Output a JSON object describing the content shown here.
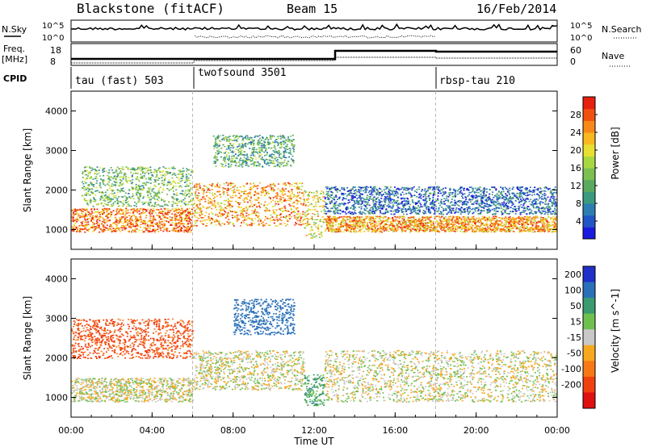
{
  "header": {
    "station": "Blackstone (fitACF)",
    "beam": "Beam 15",
    "date": "16/Feb/2014"
  },
  "sky_panel": {
    "left_label": "N.Sky",
    "right_label": "N.Search",
    "left_ticks": [
      "10^5",
      "10^0"
    ],
    "right_ticks": [
      "10^5",
      "10^0"
    ]
  },
  "freq_panel": {
    "left_label_1": "Freq.",
    "left_label_2": "[MHz]",
    "right_label": "Nave",
    "left_ticks": [
      "18",
      "8"
    ],
    "right_ticks": [
      "60",
      "0"
    ]
  },
  "cpid": {
    "label": "CPID",
    "segments": [
      {
        "name": "tau (fast) 503",
        "start_hour": 0
      },
      {
        "name": "twofsound 3501",
        "start_hour": 6
      },
      {
        "name": "rbsp-tau 210",
        "start_hour": 18
      }
    ]
  },
  "chart_data": [
    {
      "type": "heatmap",
      "title": "",
      "quantity": "Power",
      "ylabel": "Slant Range [km]",
      "xlabel": "Time UT",
      "yticks": [
        "1000",
        "2000",
        "3000",
        "4000"
      ],
      "ylim": [
        500,
        4500
      ],
      "xlim_hours": [
        0,
        24
      ],
      "colorbar": {
        "label": "Power [dB]",
        "ticks": [
          "4",
          "8",
          "12",
          "16",
          "20",
          "24",
          "28"
        ],
        "colors": [
          "#1a1adf",
          "#2255c8",
          "#2a7fb0",
          "#3a9a80",
          "#5aaa60",
          "#7cc050",
          "#a8d840",
          "#e8e030",
          "#f8b820",
          "#f88818",
          "#f05010",
          "#e82010"
        ]
      },
      "bands": [
        {
          "t0": 0.0,
          "t1": 6.0,
          "range_km": [
            950,
            1550
          ],
          "power_db": 26
        },
        {
          "t0": 0.5,
          "t1": 6.0,
          "range_km": [
            1600,
            2600
          ],
          "power_db": 14
        },
        {
          "t0": 6.0,
          "t1": 11.5,
          "range_km": [
            1100,
            2200
          ],
          "power_db": 24
        },
        {
          "t0": 7.0,
          "t1": 11.0,
          "range_km": [
            2600,
            3400
          ],
          "power_db": 12
        },
        {
          "t0": 11.5,
          "t1": 12.5,
          "range_km": [
            800,
            2000
          ],
          "power_db": 20
        },
        {
          "t0": 12.5,
          "t1": 24.0,
          "range_km": [
            950,
            1350
          ],
          "power_db": 24
        },
        {
          "t0": 12.5,
          "t1": 24.0,
          "range_km": [
            1400,
            2100
          ],
          "power_db": 6
        }
      ]
    },
    {
      "type": "heatmap",
      "title": "",
      "quantity": "Velocity",
      "ylabel": "Slant Range [km]",
      "xlabel": "Time UT",
      "yticks": [
        "1000",
        "2000",
        "3000",
        "4000"
      ],
      "ylim": [
        500,
        4500
      ],
      "xlim_hours": [
        0,
        24
      ],
      "xticks": [
        "00:00",
        "04:00",
        "08:00",
        "12:00",
        "16:00",
        "20:00",
        "00:00"
      ],
      "colorbar": {
        "label": "Velocity [m s^-1]",
        "ticks": [
          "200",
          "100",
          "50",
          "15",
          "-15",
          "-50",
          "-100",
          "-200"
        ],
        "colors": [
          "#2030c8",
          "#2a70b8",
          "#3a9a70",
          "#70c050",
          "#c8c8c8",
          "#f8a820",
          "#f87818",
          "#f04010",
          "#e01010"
        ]
      },
      "bands": [
        {
          "t0": 0.0,
          "t1": 6.0,
          "range_km": [
            2000,
            3000
          ],
          "velocity": -120
        },
        {
          "t0": 0.0,
          "t1": 6.0,
          "range_km": [
            900,
            1500
          ],
          "velocity": 0
        },
        {
          "t0": 6.0,
          "t1": 11.5,
          "range_km": [
            1200,
            2200
          ],
          "velocity": 0
        },
        {
          "t0": 8.0,
          "t1": 11.0,
          "range_km": [
            2600,
            3500
          ],
          "velocity": 150
        },
        {
          "t0": 11.5,
          "t1": 12.5,
          "range_km": [
            800,
            1600
          ],
          "velocity": 60
        },
        {
          "t0": 12.5,
          "t1": 24.0,
          "range_km": [
            900,
            2200
          ],
          "velocity": 0
        }
      ]
    }
  ]
}
